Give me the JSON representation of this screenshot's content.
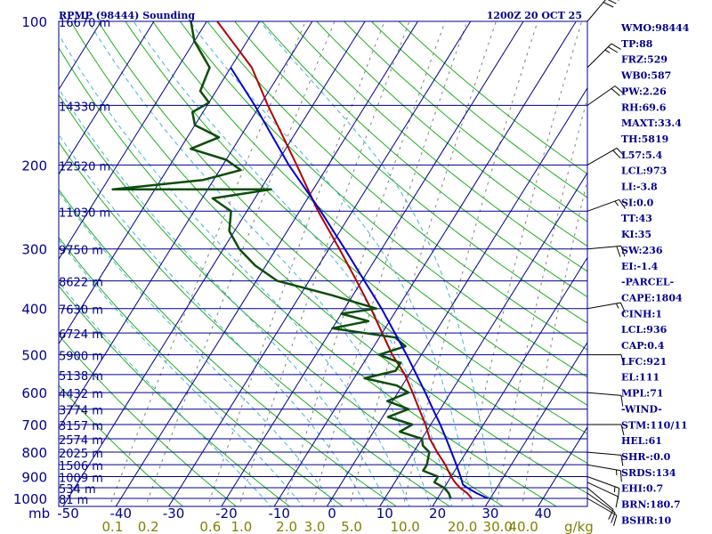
{
  "header": {
    "station_title": "RPMP (98444) Sounding",
    "datetime": "1200Z 20 OCT 25"
  },
  "colors": {
    "frame": "#00008b",
    "isobar": "#00008b",
    "isotherm": "#00008b",
    "dry_adiabat": "#1fae1f",
    "moist_adiabat": "#40b4d8",
    "mixing_ratio": "#808080",
    "temperature": "#b00000",
    "dewpoint": "#0b4d0b",
    "parcel": "#0000cd",
    "wind_barb": "#000000",
    "mixing_ratio_label": "#808000"
  },
  "chart_data": {
    "type": "line",
    "title": "RPMP (98444) Sounding",
    "subtitle": "1200Z 20 OCT 25",
    "pressure_axis": {
      "unit": "mb",
      "scale": "log",
      "range": [
        1000,
        100
      ],
      "ticks": [
        100,
        200,
        300,
        400,
        500,
        600,
        700,
        800,
        900,
        1000
      ]
    },
    "temperature_axis": {
      "skewed": true,
      "range": [
        -50,
        40
      ],
      "ticks": [
        -50,
        -40,
        -30,
        -20,
        -10,
        0,
        10,
        20,
        30,
        40
      ]
    },
    "mixing_ratio_axis": {
      "unit": "g/kg",
      "ticks": [
        "0.1",
        "0.2",
        "0.6",
        "1.0",
        "2.0",
        "3.0",
        "5.0",
        "10.0",
        "20.0",
        "30.0",
        "40.0"
      ],
      "tick_values": [
        0.1,
        0.2,
        0.6,
        1.0,
        2.0,
        3.0,
        5.0,
        10.0,
        20.0,
        30.0,
        40.0
      ]
    },
    "height_labels": [
      {
        "p": 100,
        "label": "16670 m"
      },
      {
        "p": 150,
        "label": "14330 m"
      },
      {
        "p": 200,
        "label": "12520 m"
      },
      {
        "p": 250,
        "label": "11030 m"
      },
      {
        "p": 300,
        "label": "9750 m"
      },
      {
        "p": 350,
        "label": "8622 m"
      },
      {
        "p": 400,
        "label": "7630 m"
      },
      {
        "p": 450,
        "label": "6724 m"
      },
      {
        "p": 500,
        "label": "5900 m"
      },
      {
        "p": 550,
        "label": "5138 m"
      },
      {
        "p": 600,
        "label": "4432 m"
      },
      {
        "p": 650,
        "label": "3774 m"
      },
      {
        "p": 700,
        "label": "3157 m"
      },
      {
        "p": 750,
        "label": "2574 m"
      },
      {
        "p": 800,
        "label": "2025 m"
      },
      {
        "p": 850,
        "label": "1506 m"
      },
      {
        "p": 900,
        "label": "1009 m"
      },
      {
        "p": 950,
        "label": "534 m"
      },
      {
        "p": 1000,
        "label": "81 m"
      }
    ],
    "series": [
      {
        "key": "temperature",
        "points": [
          [
            1000,
            26.5
          ],
          [
            975,
            25.0
          ],
          [
            950,
            23.0
          ],
          [
            925,
            21.4
          ],
          [
            900,
            20.0
          ],
          [
            850,
            17.5
          ],
          [
            800,
            14.5
          ],
          [
            750,
            11.5
          ],
          [
            700,
            9.0
          ],
          [
            650,
            6.0
          ],
          [
            600,
            2.8
          ],
          [
            550,
            -0.8
          ],
          [
            500,
            -5.5
          ],
          [
            450,
            -10.0
          ],
          [
            400,
            -15.0
          ],
          [
            350,
            -21.0
          ],
          [
            300,
            -28.0
          ],
          [
            250,
            -36.5
          ],
          [
            200,
            -46.0
          ],
          [
            150,
            -58.5
          ],
          [
            125,
            -66.0
          ],
          [
            100,
            -78.0
          ]
        ]
      },
      {
        "key": "dewpoint",
        "points": [
          [
            1000,
            22.5
          ],
          [
            975,
            21.5
          ],
          [
            950,
            20.0
          ],
          [
            925,
            17.5
          ],
          [
            900,
            17.5
          ],
          [
            875,
            14.0
          ],
          [
            850,
            14.0
          ],
          [
            800,
            13.0
          ],
          [
            775,
            11.0
          ],
          [
            750,
            10.0
          ],
          [
            725,
            5.0
          ],
          [
            700,
            6.5
          ],
          [
            675,
            1.0
          ],
          [
            650,
            4.0
          ],
          [
            625,
            -1.0
          ],
          [
            600,
            2.0
          ],
          [
            580,
            -1.0
          ],
          [
            560,
            -8.0
          ],
          [
            540,
            -3.0
          ],
          [
            520,
            -3.0
          ],
          [
            500,
            -8.0
          ],
          [
            480,
            -4.0
          ],
          [
            460,
            -7.0
          ],
          [
            440,
            -20.0
          ],
          [
            425,
            -14.0
          ],
          [
            410,
            -20.0
          ],
          [
            400,
            -14.0
          ],
          [
            375,
            -24.0
          ],
          [
            350,
            -36.0
          ],
          [
            325,
            -42.0
          ],
          [
            300,
            -47.0
          ],
          [
            275,
            -51.0
          ],
          [
            250,
            -53.0
          ],
          [
            235,
            -58.0
          ],
          [
            225,
            -48.0
          ],
          [
            225,
            -78.0
          ],
          [
            215,
            -62.0
          ],
          [
            205,
            -56.0
          ],
          [
            195,
            -60.0
          ],
          [
            185,
            -68.0
          ],
          [
            175,
            -64.0
          ],
          [
            165,
            -70.0
          ],
          [
            155,
            -72.0
          ],
          [
            148,
            -70.0
          ],
          [
            140,
            -73.0
          ],
          [
            125,
            -74.0
          ],
          [
            110,
            -80.0
          ],
          [
            100,
            -83.0
          ]
        ]
      },
      {
        "key": "parcel",
        "points": [
          [
            1000,
            29.5
          ],
          [
            975,
            26.8
          ],
          [
            950,
            24.4
          ],
          [
            936,
            23.2
          ],
          [
            900,
            21.8
          ],
          [
            850,
            19.6
          ],
          [
            800,
            17.2
          ],
          [
            750,
            14.6
          ],
          [
            700,
            11.8
          ],
          [
            650,
            8.6
          ],
          [
            600,
            5.2
          ],
          [
            550,
            1.4
          ],
          [
            500,
            -2.8
          ],
          [
            450,
            -7.6
          ],
          [
            400,
            -13.0
          ],
          [
            350,
            -19.5
          ],
          [
            300,
            -27.0
          ],
          [
            250,
            -36.0
          ],
          [
            200,
            -47.5
          ],
          [
            150,
            -61.0
          ],
          [
            125,
            -70.0
          ]
        ]
      }
    ],
    "wind_barbs": [
      {
        "p": 1000,
        "dir": 120,
        "spd": 10
      },
      {
        "p": 975,
        "dir": 125,
        "spd": 10
      },
      {
        "p": 950,
        "dir": 130,
        "spd": 10
      },
      {
        "p": 925,
        "dir": 115,
        "spd": 10
      },
      {
        "p": 900,
        "dir": 110,
        "spd": 15
      },
      {
        "p": 850,
        "dir": 100,
        "spd": 15
      },
      {
        "p": 800,
        "dir": 95,
        "spd": 10
      },
      {
        "p": 700,
        "dir": 90,
        "spd": 10
      },
      {
        "p": 600,
        "dir": 95,
        "spd": 10
      },
      {
        "p": 500,
        "dir": 90,
        "spd": 10
      },
      {
        "p": 400,
        "dir": 80,
        "spd": 15
      },
      {
        "p": 300,
        "dir": 85,
        "spd": 20
      },
      {
        "p": 250,
        "dir": 70,
        "spd": 15
      },
      {
        "p": 200,
        "dir": 60,
        "spd": 20
      },
      {
        "p": 150,
        "dir": 55,
        "spd": 20
      },
      {
        "p": 125,
        "dir": 45,
        "spd": 25
      },
      {
        "p": 100,
        "dir": 40,
        "spd": 30
      }
    ]
  },
  "indices": [
    "WMO:98444",
    "TP:88",
    "FRZ:529",
    "WB0:587",
    "PW:2.26",
    "RH:69.6",
    "MAXT:33.4",
    "TH:5819",
    "L57:5.4",
    "LCL:973",
    "LI:-3.8",
    "SI:0.0",
    "TT:43",
    "KI:35",
    "SW:236",
    "EI:-1.4",
    "-PARCEL-",
    "CAPE:1804",
    "CINH:1",
    "LCL:936",
    "CAP:0.4",
    "LFC:921",
    "EL:111",
    "MPL:71",
    "-WIND-",
    "STM:110/11",
    "HEL:61",
    "SHR-:0.0",
    "SRDS:134",
    "EHI:0.7",
    "BRN:180.7",
    "BSHR:10"
  ]
}
